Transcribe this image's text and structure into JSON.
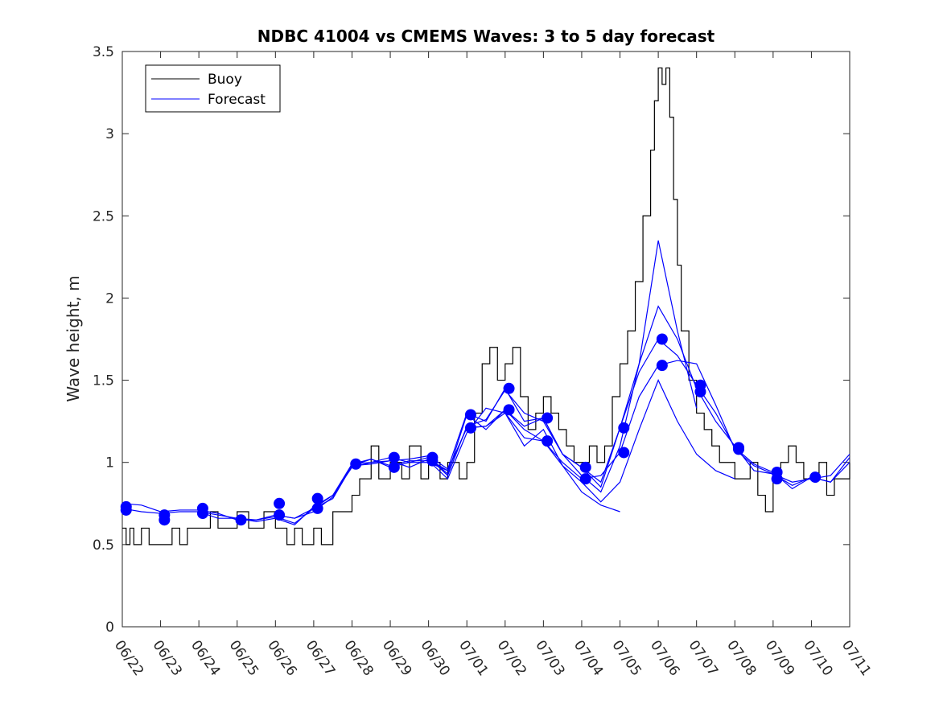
{
  "chart_data": {
    "type": "line",
    "title": "NDBC 41004 vs CMEMS Waves: 3 to 5 day forecast",
    "xlabel": "",
    "ylabel": "Wave height, m",
    "x_ticks": [
      "06/22",
      "06/23",
      "06/24",
      "06/25",
      "06/26",
      "06/27",
      "06/28",
      "06/29",
      "06/30",
      "07/01",
      "07/02",
      "07/03",
      "07/04",
      "07/05",
      "07/06",
      "07/07",
      "07/08",
      "07/09",
      "07/10",
      "07/11"
    ],
    "xlim_days": [
      0,
      19
    ],
    "ylim": [
      0,
      3.5
    ],
    "y_ticks": [
      0,
      0.5,
      1,
      1.5,
      2,
      2.5,
      3,
      3.5
    ],
    "legend": {
      "position": "top-left",
      "entries": [
        {
          "name": "Buoy",
          "color": "#000000"
        },
        {
          "name": "Forecast",
          "color": "#0000ff"
        }
      ]
    },
    "buoy_color": "#000000",
    "forecast_color": "#0000ff",
    "buoy": {
      "x": [
        0.0,
        0.1,
        0.2,
        0.3,
        0.5,
        0.7,
        1.0,
        1.3,
        1.5,
        1.7,
        2.0,
        2.3,
        2.5,
        2.7,
        3.0,
        3.3,
        3.5,
        3.7,
        4.0,
        4.3,
        4.5,
        4.7,
        5.0,
        5.2,
        5.5,
        5.7,
        6.0,
        6.2,
        6.5,
        6.7,
        7.0,
        7.3,
        7.5,
        7.8,
        8.0,
        8.3,
        8.5,
        8.8,
        9.0,
        9.2,
        9.4,
        9.6,
        9.8,
        10.0,
        10.2,
        10.4,
        10.6,
        10.8,
        11.0,
        11.2,
        11.4,
        11.6,
        11.8,
        12.0,
        12.2,
        12.4,
        12.6,
        12.8,
        13.0,
        13.2,
        13.4,
        13.6,
        13.8,
        13.9,
        14.0,
        14.1,
        14.2,
        14.3,
        14.4,
        14.5,
        14.6,
        14.8,
        15.0,
        15.2,
        15.4,
        15.6,
        15.8,
        16.0,
        16.2,
        16.4,
        16.6,
        16.8,
        17.0,
        17.2,
        17.4,
        17.6,
        17.8,
        18.0,
        18.2,
        18.4,
        18.6,
        18.8,
        19.0
      ],
      "y": [
        0.6,
        0.5,
        0.6,
        0.5,
        0.6,
        0.5,
        0.5,
        0.6,
        0.5,
        0.6,
        0.6,
        0.7,
        0.6,
        0.6,
        0.7,
        0.6,
        0.6,
        0.7,
        0.6,
        0.5,
        0.6,
        0.5,
        0.6,
        0.5,
        0.7,
        0.7,
        0.8,
        0.9,
        1.1,
        0.9,
        1.0,
        0.9,
        1.1,
        0.9,
        1.0,
        0.9,
        1.0,
        0.9,
        1.0,
        1.3,
        1.6,
        1.7,
        1.5,
        1.6,
        1.7,
        1.4,
        1.2,
        1.3,
        1.4,
        1.3,
        1.2,
        1.1,
        1.0,
        1.0,
        1.1,
        1.0,
        1.1,
        1.4,
        1.6,
        1.8,
        2.1,
        2.5,
        2.9,
        3.2,
        3.4,
        3.3,
        3.4,
        3.1,
        2.6,
        2.2,
        1.8,
        1.5,
        1.3,
        1.2,
        1.1,
        1.0,
        1.0,
        0.9,
        0.9,
        1.0,
        0.8,
        0.7,
        0.9,
        1.0,
        1.1,
        1.0,
        0.9,
        0.9,
        1.0,
        0.8,
        0.9,
        0.9,
        1.0
      ]
    },
    "forecast_series": [
      {
        "x": [
          0.0,
          0.5,
          1.0,
          1.5,
          2.0,
          2.5,
          3.0,
          3.5,
          4.0,
          4.5,
          5.0,
          5.5,
          6.0,
          6.5,
          7.0,
          7.5,
          8.0,
          8.5,
          9.0,
          9.5,
          10.0,
          10.5,
          11.0,
          11.5,
          12.0,
          12.5,
          13.0
        ],
        "y": [
          0.75,
          0.74,
          0.7,
          0.71,
          0.71,
          0.69,
          0.65,
          0.65,
          0.67,
          0.63,
          0.72,
          0.78,
          0.98,
          1.02,
          0.98,
          1.01,
          1.01,
          0.9,
          1.18,
          1.33,
          1.3,
          1.1,
          1.2,
          0.98,
          0.82,
          0.74,
          0.7
        ]
      },
      {
        "x": [
          0.0,
          0.5,
          1.0,
          1.5,
          2.0,
          2.5,
          3.0,
          3.5,
          4.0,
          4.5,
          5.0,
          5.5,
          6.0,
          6.5,
          7.0,
          7.5,
          8.0,
          8.5,
          9.0,
          9.5,
          10.0,
          10.5,
          11.0,
          11.5,
          12.0,
          12.5,
          13.0,
          13.5,
          14.0,
          14.5,
          15.0
        ],
        "y": [
          0.72,
          0.7,
          0.69,
          0.7,
          0.7,
          0.66,
          0.66,
          0.64,
          0.66,
          0.62,
          0.73,
          0.8,
          0.99,
          1.0,
          1.03,
          1.0,
          1.03,
          0.92,
          1.22,
          1.26,
          1.44,
          1.3,
          1.25,
          1.05,
          0.92,
          0.82,
          1.1,
          1.6,
          2.35,
          1.8,
          1.33
        ]
      },
      {
        "x": [
          2.0,
          2.5,
          3.0,
          3.5,
          4.0,
          4.5,
          5.0,
          5.5,
          6.0,
          6.5,
          7.0,
          7.5,
          8.0,
          8.5,
          9.0,
          9.5,
          10.0,
          10.5,
          11.0,
          11.5,
          12.0,
          12.5,
          13.0,
          13.5,
          14.0,
          14.5,
          15.0,
          15.5,
          16.0
        ],
        "y": [
          0.7,
          0.68,
          0.66,
          0.65,
          0.68,
          0.66,
          0.7,
          0.79,
          0.99,
          1.02,
          0.97,
          1.0,
          1.0,
          0.95,
          1.21,
          1.22,
          1.32,
          1.2,
          1.13,
          0.98,
          0.88,
          0.76,
          0.88,
          1.2,
          1.5,
          1.25,
          1.05,
          0.95,
          0.9
        ]
      },
      {
        "x": [
          4.0,
          4.5,
          5.0,
          5.5,
          6.0,
          6.5,
          7.0,
          7.5,
          8.0,
          8.5,
          9.0,
          9.5,
          10.0,
          10.5,
          11.0,
          11.5,
          12.0,
          12.5,
          13.0,
          13.5,
          14.0,
          14.5,
          15.0,
          15.5,
          16.0,
          16.5,
          17.0,
          17.5,
          18.0,
          18.5,
          19.0
        ],
        "y": [
          0.68,
          0.66,
          0.72,
          0.8,
          0.97,
          1.0,
          1.01,
          1.02,
          1.04,
          0.96,
          1.3,
          1.25,
          1.45,
          1.25,
          1.27,
          1.05,
          0.97,
          0.85,
          1.21,
          1.6,
          1.95,
          1.75,
          1.45,
          1.25,
          1.1,
          0.95,
          0.93,
          0.88,
          0.9,
          0.92,
          1.05
        ]
      },
      {
        "x": [
          6.0,
          6.5,
          7.0,
          7.5,
          8.0,
          8.5,
          9.0,
          9.5,
          10.0,
          10.5,
          11.0,
          11.5,
          12.0,
          12.5,
          13.0,
          13.5,
          14.0,
          14.5,
          15.0,
          15.5,
          16.0,
          16.5,
          17.0,
          17.5,
          18.0,
          18.5,
          19.0
        ],
        "y": [
          0.98,
          0.99,
          1.01,
          0.97,
          1.02,
          0.95,
          1.21,
          1.22,
          1.3,
          1.15,
          1.13,
          1.0,
          0.9,
          0.92,
          1.06,
          1.4,
          1.59,
          1.62,
          1.6,
          1.35,
          1.08,
          0.98,
          0.93,
          0.86,
          0.91,
          0.88,
          1.0
        ]
      },
      {
        "x": [
          8.0,
          8.5,
          9.0,
          9.5,
          10.0,
          10.5,
          11.0,
          11.5,
          12.0,
          12.5,
          13.0,
          13.5,
          14.0,
          14.5,
          15.0,
          15.5,
          16.0,
          16.5,
          17.0,
          17.5,
          18.0,
          18.5,
          19.0
        ],
        "y": [
          1.03,
          0.93,
          1.29,
          1.2,
          1.32,
          1.22,
          1.27,
          1.05,
          0.97,
          0.88,
          1.21,
          1.55,
          1.75,
          1.65,
          1.47,
          1.3,
          1.09,
          0.99,
          0.94,
          0.84,
          0.91,
          0.88,
          1.03
        ]
      }
    ],
    "forecast_markers": {
      "x": [
        0.1,
        0.1,
        1.1,
        1.1,
        2.1,
        2.1,
        3.1,
        4.1,
        4.1,
        5.1,
        5.1,
        6.1,
        7.1,
        7.1,
        8.1,
        8.1,
        9.1,
        9.1,
        10.1,
        10.1,
        11.1,
        11.1,
        12.1,
        12.1,
        13.1,
        13.1,
        14.1,
        14.1,
        15.1,
        15.1,
        16.1,
        16.1,
        17.1,
        17.1,
        18.1
      ],
      "y": [
        0.73,
        0.71,
        0.68,
        0.65,
        0.72,
        0.69,
        0.65,
        0.75,
        0.68,
        0.78,
        0.72,
        0.99,
        1.03,
        0.97,
        1.03,
        1.01,
        1.29,
        1.21,
        1.45,
        1.32,
        1.27,
        1.13,
        0.97,
        0.9,
        1.21,
        1.06,
        1.75,
        1.59,
        1.47,
        1.43,
        1.09,
        1.08,
        0.94,
        0.9,
        0.91
      ]
    }
  }
}
